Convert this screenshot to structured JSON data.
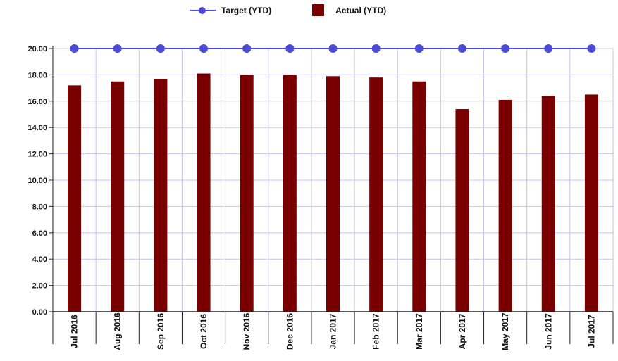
{
  "legend": {
    "target_label": "Target (YTD)",
    "actual_label": "Actual (YTD)"
  },
  "colors": {
    "bar": "#7a0000",
    "target": "#4b4bd9",
    "grid": "#c4c4e8",
    "axis": "#222222",
    "text": "#111111"
  },
  "chart_data": {
    "type": "bar",
    "categories": [
      "Jul 2016",
      "Aug 2016",
      "Sep 2016",
      "Oct 2016",
      "Nov 2016",
      "Dec 2016",
      "Jan 2017",
      "Feb 2017",
      "Mar 2017",
      "Apr 2017",
      "May 2017",
      "Jun 2017",
      "Jul 2017"
    ],
    "series": [
      {
        "name": "Target (YTD)",
        "kind": "line",
        "values": [
          20,
          20,
          20,
          20,
          20,
          20,
          20,
          20,
          20,
          20,
          20,
          20,
          20
        ]
      },
      {
        "name": "Actual (YTD)",
        "kind": "bar",
        "values": [
          17.2,
          17.5,
          17.7,
          18.1,
          18.0,
          18.0,
          17.9,
          17.8,
          17.5,
          15.4,
          16.1,
          16.4,
          16.5
        ]
      }
    ],
    "yticks": [
      "0.00",
      "2.00",
      "4.00",
      "6.00",
      "8.00",
      "10.00",
      "12.00",
      "14.00",
      "16.00",
      "18.00",
      "20.00"
    ],
    "ylim": [
      0,
      20
    ],
    "grid": true,
    "legend_position": "top-center"
  }
}
